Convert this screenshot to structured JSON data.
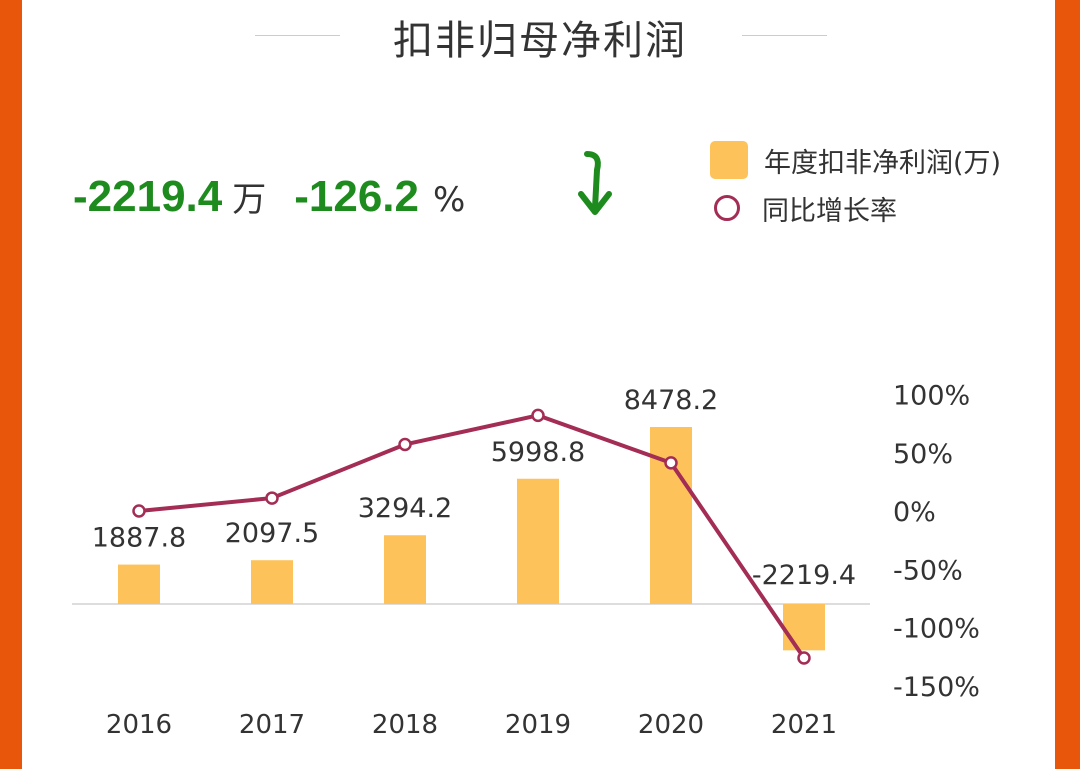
{
  "header": {
    "title": "扣非归母净利润"
  },
  "summary": {
    "value": "-2219.4",
    "value_unit": "万",
    "rate": "-126.2",
    "rate_unit": "%",
    "trend_icon": "arrow-down-icon"
  },
  "legend": {
    "bar": "年度扣非净利润(万)",
    "line": "同比增长率"
  },
  "colors": {
    "bar": "#FDC35A",
    "line": "#A32D55",
    "highlight": "#1E8B1E",
    "border": "#E8560C"
  },
  "chart_data": {
    "type": "bar+line",
    "categories": [
      "2016",
      "2017",
      "2018",
      "2019",
      "2020",
      "2021"
    ],
    "series": [
      {
        "name": "年度扣非净利润(万)",
        "type": "bar",
        "values": [
          1887.8,
          2097.5,
          3294.2,
          5998.8,
          8478.2,
          -2219.4
        ],
        "labels": [
          "1887.8",
          "2097.5",
          "3294.2",
          "5998.8",
          "8478.2",
          "-2219.4"
        ]
      },
      {
        "name": "同比增长率",
        "type": "line",
        "axis": "right",
        "values": [
          0,
          11.1,
          57.1,
          82.1,
          41.3,
          -126.2
        ]
      }
    ],
    "right_axis": {
      "ticks": [
        "100%",
        "50%",
        "0%",
        "-50%",
        "-100%",
        "-150%"
      ],
      "range": [
        -150,
        100
      ]
    },
    "legend_position": "top-right",
    "grid": false
  }
}
